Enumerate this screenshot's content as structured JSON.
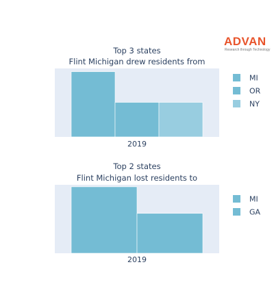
{
  "logo": {
    "name": "ADVAN",
    "tagline": "Research through Technology",
    "color": "#e8542b"
  },
  "plot_bg": "#e5ecf6",
  "chart_data": [
    {
      "type": "bar",
      "title_lines": [
        "Top 3 states",
        "Flint Michigan drew residents from"
      ],
      "categories": [
        "2019"
      ],
      "series": [
        {
          "name": "MI",
          "values": [
            100
          ],
          "color": "#74bcd4"
        },
        {
          "name": "OR",
          "values": [
            53
          ],
          "color": "#74bcd4"
        },
        {
          "name": "NY",
          "values": [
            53
          ],
          "color": "#98cde0"
        }
      ],
      "ylim": [
        0,
        105
      ],
      "grid": true,
      "legend": "right"
    },
    {
      "type": "bar",
      "title_lines": [
        "Top 2 states",
        "Flint Michigan lost residents to"
      ],
      "categories": [
        "2019"
      ],
      "series": [
        {
          "name": "MI",
          "values": [
            100
          ],
          "color": "#74bcd4"
        },
        {
          "name": "GA",
          "values": [
            60
          ],
          "color": "#74bcd4"
        }
      ],
      "ylim": [
        0,
        103
      ],
      "grid": true,
      "legend": "right"
    }
  ]
}
